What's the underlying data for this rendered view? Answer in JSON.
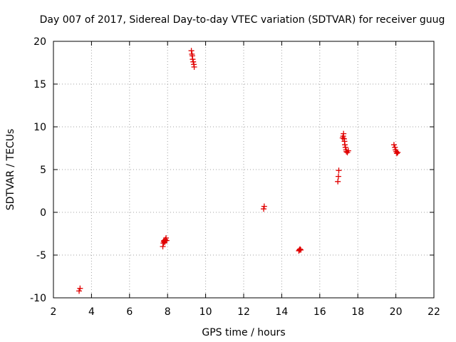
{
  "chart_data": {
    "type": "scatter",
    "title": "Day 007 of 2017, Sidereal Day-to-day VTEC variation (SDTVAR) for receiver guug",
    "xlabel": "GPS time / hours",
    "ylabel": "SDTVAR / TECUs",
    "xlim": [
      2,
      22
    ],
    "ylim": [
      -10,
      20
    ],
    "x_ticks": [
      2,
      4,
      6,
      8,
      10,
      12,
      14,
      16,
      18,
      20,
      22
    ],
    "y_ticks": [
      -10,
      -5,
      0,
      5,
      10,
      15,
      20
    ],
    "grid": true,
    "legend": "none",
    "marker": "plus",
    "color": "#e00000",
    "series": [
      {
        "points": [
          [
            3.35,
            -9.2
          ],
          [
            3.4,
            -8.9
          ],
          [
            7.75,
            -4.0
          ],
          [
            7.78,
            -3.6
          ],
          [
            7.8,
            -3.4
          ],
          [
            7.82,
            -3.3
          ],
          [
            7.85,
            -3.5
          ],
          [
            7.88,
            -3.2
          ],
          [
            7.92,
            -3.0
          ],
          [
            7.95,
            -3.3
          ],
          [
            9.25,
            18.9
          ],
          [
            9.28,
            18.5
          ],
          [
            9.3,
            18.3
          ],
          [
            9.32,
            17.9
          ],
          [
            9.35,
            17.6
          ],
          [
            9.38,
            17.3
          ],
          [
            9.4,
            17.0
          ],
          [
            13.05,
            0.4
          ],
          [
            13.08,
            0.7
          ],
          [
            14.9,
            -4.5
          ],
          [
            14.93,
            -4.4
          ],
          [
            14.96,
            -4.3
          ],
          [
            15.0,
            -4.4
          ],
          [
            16.95,
            3.6
          ],
          [
            16.98,
            4.2
          ],
          [
            17.0,
            4.9
          ],
          [
            17.2,
            8.7
          ],
          [
            17.23,
            8.9
          ],
          [
            17.25,
            9.2
          ],
          [
            17.28,
            8.6
          ],
          [
            17.3,
            8.3
          ],
          [
            17.32,
            7.9
          ],
          [
            17.35,
            7.6
          ],
          [
            17.38,
            7.3
          ],
          [
            17.4,
            7.1
          ],
          [
            17.45,
            7.0
          ],
          [
            17.5,
            7.2
          ],
          [
            19.9,
            7.9
          ],
          [
            19.95,
            7.6
          ],
          [
            19.98,
            7.3
          ],
          [
            20.02,
            7.1
          ],
          [
            20.05,
            6.9
          ],
          [
            20.1,
            7.0
          ]
        ]
      }
    ]
  }
}
